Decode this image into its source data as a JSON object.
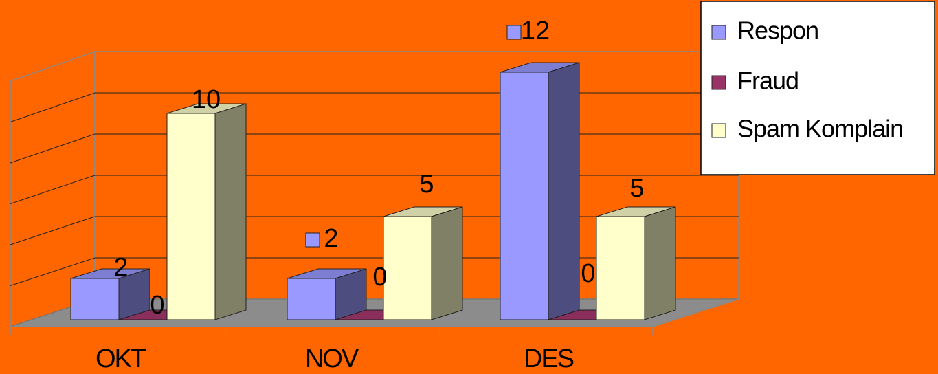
{
  "chart_data": {
    "type": "bar",
    "style": "3d-clustered-column",
    "categories": [
      "OKT",
      "NOV",
      "DES"
    ],
    "series": [
      {
        "name": "Respon",
        "values": [
          2,
          2,
          12
        ],
        "color": "#9999FF"
      },
      {
        "name": "Fraud",
        "values": [
          0,
          0,
          0
        ],
        "color": "#993366"
      },
      {
        "name": "Spam Komplain",
        "values": [
          10,
          5,
          5
        ],
        "color": "#FFFFCC"
      }
    ],
    "ylim": [
      0,
      12
    ],
    "grid": true,
    "legend": "top-right",
    "background": "#FF6600"
  }
}
